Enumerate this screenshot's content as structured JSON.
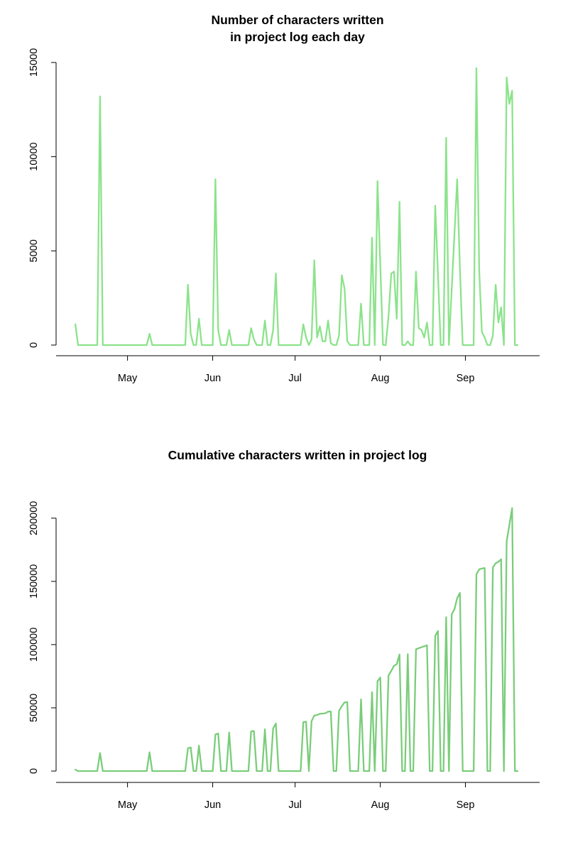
{
  "colors": {
    "line1": "#8be38b",
    "line2": "#7acd7a",
    "axis": "#000000"
  },
  "chart_data": [
    {
      "type": "line",
      "title": [
        "Number of characters written",
        "in project log each day"
      ],
      "xlabel": "",
      "ylabel": "",
      "xlim": [
        "2013-04-05",
        "2013-09-28"
      ],
      "ylim": [
        0,
        15000
      ],
      "y_ticks": [
        0,
        5000,
        10000,
        15000
      ],
      "x_ticks": [
        {
          "date": "2013-05-01",
          "label": "May"
        },
        {
          "date": "2013-06-01",
          "label": "Jun"
        },
        {
          "date": "2013-07-01",
          "label": "Jul"
        },
        {
          "date": "2013-08-01",
          "label": "Aug"
        },
        {
          "date": "2013-09-01",
          "label": "Sep"
        }
      ],
      "grid": false,
      "series": [
        {
          "points": [
            [
              "2013-04-12",
              1100
            ],
            [
              "2013-04-13",
              0
            ],
            [
              "2013-04-20",
              0
            ],
            [
              "2013-04-21",
              13200
            ],
            [
              "2013-04-22",
              0
            ],
            [
              "2013-05-08",
              0
            ],
            [
              "2013-05-09",
              600
            ],
            [
              "2013-05-10",
              0
            ],
            [
              "2013-05-22",
              0
            ],
            [
              "2013-05-23",
              3200
            ],
            [
              "2013-05-24",
              600
            ],
            [
              "2013-05-25",
              0
            ],
            [
              "2013-05-26",
              0
            ],
            [
              "2013-05-27",
              1400
            ],
            [
              "2013-05-28",
              0
            ],
            [
              "2013-06-01",
              0
            ],
            [
              "2013-06-02",
              8800
            ],
            [
              "2013-06-03",
              800
            ],
            [
              "2013-06-04",
              0
            ],
            [
              "2013-06-06",
              0
            ],
            [
              "2013-06-07",
              800
            ],
            [
              "2013-06-08",
              0
            ],
            [
              "2013-06-14",
              0
            ],
            [
              "2013-06-15",
              900
            ],
            [
              "2013-06-16",
              300
            ],
            [
              "2013-06-17",
              0
            ],
            [
              "2013-06-19",
              0
            ],
            [
              "2013-06-20",
              1300
            ],
            [
              "2013-06-21",
              0
            ],
            [
              "2013-06-22",
              0
            ],
            [
              "2013-06-23",
              800
            ],
            [
              "2013-06-24",
              3800
            ],
            [
              "2013-06-25",
              0
            ],
            [
              "2013-07-03",
              0
            ],
            [
              "2013-07-04",
              1100
            ],
            [
              "2013-07-05",
              400
            ],
            [
              "2013-07-06",
              0
            ],
            [
              "2013-07-07",
              300
            ],
            [
              "2013-07-08",
              4500
            ],
            [
              "2013-07-09",
              400
            ],
            [
              "2013-07-10",
              1000
            ],
            [
              "2013-07-11",
              200
            ],
            [
              "2013-07-12",
              200
            ],
            [
              "2013-07-13",
              1300
            ],
            [
              "2013-07-14",
              100
            ],
            [
              "2013-07-15",
              0
            ],
            [
              "2013-07-16",
              0
            ],
            [
              "2013-07-17",
              500
            ],
            [
              "2013-07-18",
              3700
            ],
            [
              "2013-07-19",
              3000
            ],
            [
              "2013-07-20",
              200
            ],
            [
              "2013-07-21",
              0
            ],
            [
              "2013-07-24",
              0
            ],
            [
              "2013-07-25",
              2200
            ],
            [
              "2013-07-26",
              0
            ],
            [
              "2013-07-28",
              0
            ],
            [
              "2013-07-29",
              5700
            ],
            [
              "2013-07-30",
              0
            ],
            [
              "2013-07-31",
              8700
            ],
            [
              "2013-08-02",
              0
            ],
            [
              "2013-08-03",
              0
            ],
            [
              "2013-08-04",
              1500
            ],
            [
              "2013-08-05",
              3800
            ],
            [
              "2013-08-06",
              3900
            ],
            [
              "2013-08-07",
              1400
            ],
            [
              "2013-08-08",
              7600
            ],
            [
              "2013-08-09",
              0
            ],
            [
              "2013-08-10",
              0
            ],
            [
              "2013-08-11",
              200
            ],
            [
              "2013-08-12",
              0
            ],
            [
              "2013-08-13",
              0
            ],
            [
              "2013-08-14",
              3900
            ],
            [
              "2013-08-15",
              900
            ],
            [
              "2013-08-16",
              800
            ],
            [
              "2013-08-17",
              400
            ],
            [
              "2013-08-18",
              1200
            ],
            [
              "2013-08-19",
              0
            ],
            [
              "2013-08-20",
              0
            ],
            [
              "2013-08-21",
              7400
            ],
            [
              "2013-08-22",
              3800
            ],
            [
              "2013-08-23",
              0
            ],
            [
              "2013-08-24",
              0
            ],
            [
              "2013-08-25",
              11000
            ],
            [
              "2013-08-26",
              0
            ],
            [
              "2013-08-29",
              8800
            ],
            [
              "2013-08-30",
              4000
            ],
            [
              "2013-08-31",
              0
            ],
            [
              "2013-09-04",
              0
            ],
            [
              "2013-09-05",
              14700
            ],
            [
              "2013-09-06",
              4000
            ],
            [
              "2013-09-07",
              700
            ],
            [
              "2013-09-08",
              400
            ],
            [
              "2013-09-09",
              0
            ],
            [
              "2013-09-10",
              0
            ],
            [
              "2013-09-11",
              500
            ],
            [
              "2013-09-12",
              3200
            ],
            [
              "2013-09-13",
              1200
            ],
            [
              "2013-09-14",
              2000
            ],
            [
              "2013-09-15",
              0
            ],
            [
              "2013-09-16",
              14200
            ],
            [
              "2013-09-17",
              12800
            ],
            [
              "2013-09-18",
              13500
            ],
            [
              "2013-09-19",
              0
            ],
            [
              "2013-09-20",
              0
            ]
          ]
        }
      ]
    },
    {
      "type": "line",
      "title": [
        "Cumulative characters written in project log"
      ],
      "xlabel": "",
      "ylabel": "",
      "xlim": [
        "2013-04-05",
        "2013-09-28"
      ],
      "ylim": [
        0,
        210000
      ],
      "y_ticks": [
        0,
        50000,
        100000,
        150000,
        200000
      ],
      "x_ticks": [
        {
          "date": "2013-05-01",
          "label": "May"
        },
        {
          "date": "2013-06-01",
          "label": "Jun"
        },
        {
          "date": "2013-07-01",
          "label": "Jul"
        },
        {
          "date": "2013-08-01",
          "label": "Aug"
        },
        {
          "date": "2013-09-01",
          "label": "Sep"
        }
      ],
      "grid": false,
      "series": [
        {
          "points": [
            [
              "2013-04-12",
              1100
            ],
            [
              "2013-04-13",
              0
            ],
            [
              "2013-04-20",
              0
            ],
            [
              "2013-04-21",
              14300
            ],
            [
              "2013-04-22",
              0
            ],
            [
              "2013-05-08",
              0
            ],
            [
              "2013-05-09",
              14900
            ],
            [
              "2013-05-10",
              0
            ],
            [
              "2013-05-22",
              0
            ],
            [
              "2013-05-23",
              18100
            ],
            [
              "2013-05-24",
              18700
            ],
            [
              "2013-05-25",
              0
            ],
            [
              "2013-05-26",
              0
            ],
            [
              "2013-05-27",
              20100
            ],
            [
              "2013-05-28",
              0
            ],
            [
              "2013-06-01",
              0
            ],
            [
              "2013-06-02",
              28900
            ],
            [
              "2013-06-03",
              29700
            ],
            [
              "2013-06-04",
              0
            ],
            [
              "2013-06-06",
              0
            ],
            [
              "2013-06-07",
              30500
            ],
            [
              "2013-06-08",
              0
            ],
            [
              "2013-06-14",
              0
            ],
            [
              "2013-06-15",
              31400
            ],
            [
              "2013-06-16",
              31700
            ],
            [
              "2013-06-17",
              0
            ],
            [
              "2013-06-19",
              0
            ],
            [
              "2013-06-20",
              33000
            ],
            [
              "2013-06-21",
              0
            ],
            [
              "2013-06-22",
              0
            ],
            [
              "2013-06-23",
              33800
            ],
            [
              "2013-06-24",
              37600
            ],
            [
              "2013-06-25",
              0
            ],
            [
              "2013-07-03",
              0
            ],
            [
              "2013-07-04",
              38700
            ],
            [
              "2013-07-05",
              39100
            ],
            [
              "2013-07-06",
              0
            ],
            [
              "2013-07-07",
              39400
            ],
            [
              "2013-07-08",
              43900
            ],
            [
              "2013-07-09",
              44300
            ],
            [
              "2013-07-10",
              45300
            ],
            [
              "2013-07-11",
              45500
            ],
            [
              "2013-07-12",
              45700
            ],
            [
              "2013-07-13",
              47000
            ],
            [
              "2013-07-14",
              47100
            ],
            [
              "2013-07-15",
              0
            ],
            [
              "2013-07-16",
              0
            ],
            [
              "2013-07-17",
              47600
            ],
            [
              "2013-07-18",
              51300
            ],
            [
              "2013-07-19",
              54300
            ],
            [
              "2013-07-20",
              54500
            ],
            [
              "2013-07-21",
              0
            ],
            [
              "2013-07-24",
              0
            ],
            [
              "2013-07-25",
              56700
            ],
            [
              "2013-07-26",
              0
            ],
            [
              "2013-07-28",
              0
            ],
            [
              "2013-07-29",
              62400
            ],
            [
              "2013-07-30",
              0
            ],
            [
              "2013-07-31",
              71100
            ],
            [
              "2013-08-01",
              74000
            ],
            [
              "2013-08-02",
              0
            ],
            [
              "2013-08-03",
              0
            ],
            [
              "2013-08-04",
              75500
            ],
            [
              "2013-08-05",
              79300
            ],
            [
              "2013-08-06",
              83200
            ],
            [
              "2013-08-07",
              84600
            ],
            [
              "2013-08-08",
              92200
            ],
            [
              "2013-08-09",
              0
            ],
            [
              "2013-08-10",
              0
            ],
            [
              "2013-08-11",
              92400
            ],
            [
              "2013-08-12",
              0
            ],
            [
              "2013-08-13",
              0
            ],
            [
              "2013-08-14",
              96300
            ],
            [
              "2013-08-15",
              97200
            ],
            [
              "2013-08-18",
              99500
            ],
            [
              "2013-08-19",
              0
            ],
            [
              "2013-08-20",
              0
            ],
            [
              "2013-08-21",
              106900
            ],
            [
              "2013-08-22",
              110700
            ],
            [
              "2013-08-23",
              0
            ],
            [
              "2013-08-24",
              0
            ],
            [
              "2013-08-25",
              121700
            ],
            [
              "2013-08-26",
              0
            ],
            [
              "2013-08-27",
              124000
            ],
            [
              "2013-08-28",
              128000
            ],
            [
              "2013-08-29",
              136800
            ],
            [
              "2013-08-30",
              140800
            ],
            [
              "2013-08-31",
              0
            ],
            [
              "2013-09-04",
              0
            ],
            [
              "2013-09-05",
              155500
            ],
            [
              "2013-09-06",
              159500
            ],
            [
              "2013-09-07",
              160200
            ],
            [
              "2013-09-08",
              160600
            ],
            [
              "2013-09-09",
              0
            ],
            [
              "2013-09-10",
              0
            ],
            [
              "2013-09-11",
              161100
            ],
            [
              "2013-09-12",
              164300
            ],
            [
              "2013-09-13",
              165500
            ],
            [
              "2013-09-14",
              167500
            ],
            [
              "2013-09-15",
              0
            ],
            [
              "2013-09-16",
              181700
            ],
            [
              "2013-09-17",
              194500
            ],
            [
              "2013-09-18",
              208000
            ],
            [
              "2013-09-19",
              0
            ],
            [
              "2013-09-20",
              0
            ]
          ]
        }
      ]
    }
  ]
}
